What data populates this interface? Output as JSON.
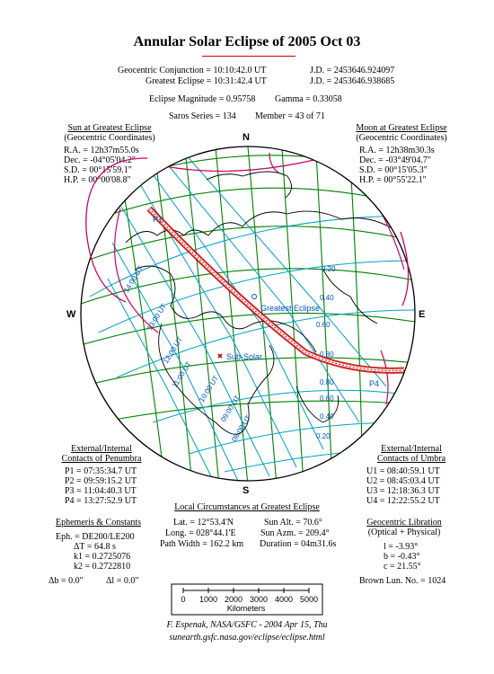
{
  "title": "Annular Solar Eclipse of  2005 Oct 03",
  "header": {
    "conj_label": "Geocentric Conjunction = 10:10:42.0 UT",
    "conj_jd": "J.D. = 2453646.924097",
    "greatest_label": "Greatest Eclipse = 10:31:42.4 UT",
    "greatest_jd": "J.D. = 2453646.938685",
    "magnitude": "Eclipse Magnitude = 0.95758",
    "gamma": "Gamma = 0.33058",
    "saros": "Saros Series = 134",
    "member": "Member = 43 of 71"
  },
  "sun": {
    "heading": "Sun at Greatest Eclipse",
    "sub": "(Geocentric Coordinates)",
    "ra": "R.A. = 12h37m55.0s",
    "dec": "Dec. = -04°05'04.2\"",
    "sd": "S.D. = 00°15'59.1\"",
    "hp": "H.P. = 00°00'08.8\""
  },
  "moon": {
    "heading": "Moon at Greatest Eclipse",
    "sub": "(Geocentric Coordinates)",
    "ra": "R.A. = 12h38m30.3s",
    "dec": "Dec. = -03°49'04.7\"",
    "sd": "S.D. = 00°15'05.3\"",
    "hp": "H.P. = 00°55'22.1\""
  },
  "compass": {
    "n": "N",
    "s": "S",
    "w": "W",
    "e": "E"
  },
  "map": {
    "p1": "P1",
    "p4": "P4",
    "greatest_eclipse": "Greatest Eclipse",
    "sub_solar": "Sub-Solar",
    "mag_labels": [
      "0.20",
      "0.40",
      "0.60",
      "0.80",
      "0.80",
      "0.60",
      "0.40",
      "0.20"
    ],
    "time_labels": [
      "14:00 UT",
      "13:00 UT",
      "12:00 UT",
      "11:00 UT",
      "10:00 UT",
      "09:00 UT",
      "08:00 UT"
    ]
  },
  "penumbra": {
    "heading": "External/Internal",
    "heading2": "Contacts of Penumbra",
    "p1": "P1 = 07:35:34.7 UT",
    "p2": "P2 = 09:59:15.2 UT",
    "p3": "P3 = 11:04:40.3 UT",
    "p4": "P4 = 13:27:52.9 UT"
  },
  "umbra": {
    "heading": "External/Internal",
    "heading2": "Contacts of Umbra",
    "u1": "U1 = 08:40:59.1 UT",
    "u2": "U2 = 08:45:03.4 UT",
    "u3": "U3 = 12:18:36.3 UT",
    "u4": "U4 = 12:22:55.2 UT"
  },
  "local": {
    "heading": "Local Circumstances at Greatest Eclipse",
    "lat": "Lat. = 12°53.4'N",
    "sun_alt": "Sun Alt. = 70.6°",
    "long": "Long. = 028°44.1'E",
    "sun_azm": "Sun Azm. = 209.4°",
    "path_width": "Path Width = 162.2 km",
    "duration": "Duration = 04m31.6s"
  },
  "ephemeris": {
    "heading": "Ephemeris & Constants",
    "eph": "Eph. = DE200/LE200",
    "dt": "ΔT = 64.8 s",
    "k1": "k1 = 0.2725076",
    "k2": "k2 = 0.2722810",
    "db": "Δb = 0.0\"",
    "dl": "Δl = 0.0\""
  },
  "libration": {
    "heading": "Geocentric Libration",
    "sub": "(Optical + Physical)",
    "l": "l = -3.93°",
    "b": "b = -0.43°",
    "c": "c = 21.55°",
    "brown": "Brown Lun. No. = 1024"
  },
  "scale": {
    "ticks": [
      "0",
      "1000",
      "2000",
      "3000",
      "4000",
      "5000"
    ],
    "unit": "Kilometers"
  },
  "footer": {
    "credit": "F. Espenak, NASA/GSFC - 2004 Apr 15, Thu",
    "url": "sunearth.gsfc.nasa.gov/eclipse/eclipse.html"
  },
  "colors": {
    "path": "#cc0000",
    "grid": "#008000",
    "contours": "#00a0c8",
    "limits": "#cc0066",
    "coast": "#000000"
  }
}
